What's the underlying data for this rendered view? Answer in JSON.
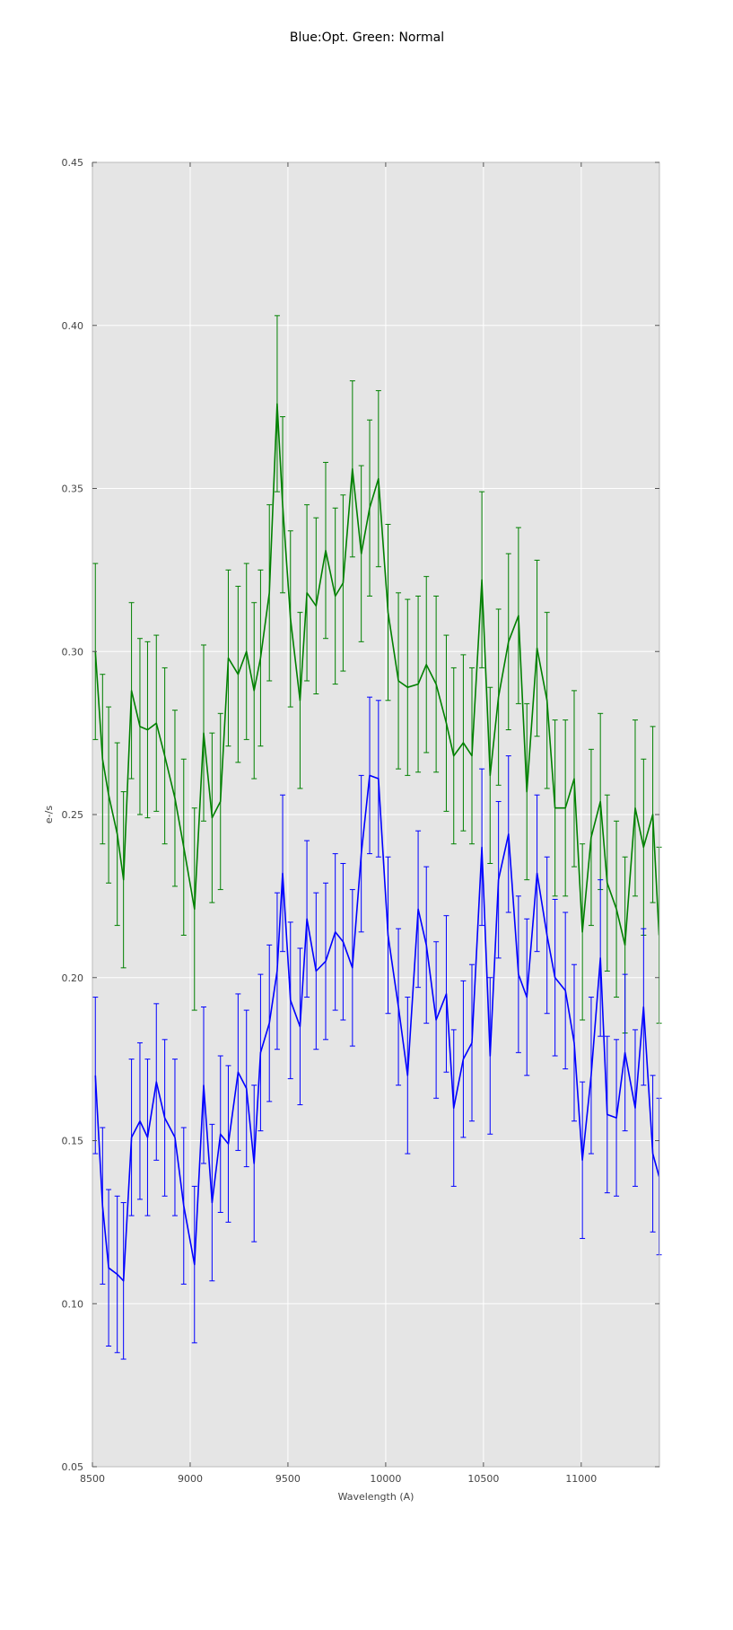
{
  "chart_data": {
    "type": "line",
    "title": "Blue:Opt. Green: Normal",
    "xlabel": "Wavelength (A)",
    "ylabel": "e-/s",
    "xlim": [
      8500,
      11400
    ],
    "ylim": [
      0.05,
      0.45
    ],
    "xticks": [
      8500,
      9000,
      9500,
      10000,
      10500,
      11000
    ],
    "xtick_labels": [
      "8500",
      "9000",
      "9500",
      "10000",
      "10500",
      "11000"
    ],
    "yticks": [
      0.05,
      0.1,
      0.15,
      0.2,
      0.25,
      0.3,
      0.35,
      0.4,
      0.45
    ],
    "ytick_labels": [
      "0.05",
      "0.10",
      "0.15",
      "0.20",
      "0.25",
      "0.30",
      "0.35",
      "0.40",
      "0.45"
    ],
    "grid": true,
    "background": "#e5e5e5",
    "error_bars": true,
    "x": [
      8515,
      8552,
      8583,
      8627,
      8659,
      8700,
      8743,
      8782,
      8827,
      8870,
      8922,
      8967,
      9022,
      9069,
      9112,
      9155,
      9195,
      9245,
      9288,
      9327,
      9360,
      9405,
      9445,
      9473,
      9513,
      9562,
      9597,
      9644,
      9693,
      9742,
      9782,
      9830,
      9875,
      9918,
      9963,
      10012,
      10065,
      10112,
      10166,
      10208,
      10258,
      10310,
      10348,
      10397,
      10441,
      10492,
      10534,
      10577,
      10628,
      10679,
      10722,
      10774,
      10825,
      10866,
      10919,
      10964,
      11006,
      11051,
      11098,
      11133,
      11180,
      11224,
      11276,
      11319,
      11366,
      11398
    ],
    "series": [
      {
        "color": "#008000",
        "values": [
          0.3,
          0.267,
          0.256,
          0.244,
          0.23,
          0.288,
          0.277,
          0.276,
          0.278,
          0.268,
          0.255,
          0.24,
          0.221,
          0.275,
          0.249,
          0.254,
          0.298,
          0.293,
          0.3,
          0.288,
          0.298,
          0.318,
          0.376,
          0.345,
          0.31,
          0.285,
          0.318,
          0.314,
          0.331,
          0.317,
          0.321,
          0.356,
          0.33,
          0.344,
          0.353,
          0.312,
          0.291,
          0.289,
          0.29,
          0.296,
          0.29,
          0.278,
          0.268,
          0.272,
          0.268,
          0.322,
          0.262,
          0.286,
          0.303,
          0.311,
          0.257,
          0.301,
          0.285,
          0.252,
          0.252,
          0.261,
          0.214,
          0.243,
          0.254,
          0.229,
          0.221,
          0.21,
          0.252,
          0.24,
          0.25,
          0.213
        ],
        "err": [
          0.027,
          0.026,
          0.027,
          0.028,
          0.027,
          0.027,
          0.027,
          0.027,
          0.027,
          0.027,
          0.027,
          0.027,
          0.031,
          0.027,
          0.026,
          0.027,
          0.027,
          0.027,
          0.027,
          0.027,
          0.027,
          0.027,
          0.027,
          0.027,
          0.027,
          0.027,
          0.027,
          0.027,
          0.027,
          0.027,
          0.027,
          0.027,
          0.027,
          0.027,
          0.027,
          0.027,
          0.027,
          0.027,
          0.027,
          0.027,
          0.027,
          0.027,
          0.027,
          0.027,
          0.027,
          0.027,
          0.027,
          0.027,
          0.027,
          0.027,
          0.027,
          0.027,
          0.027,
          0.027,
          0.027,
          0.027,
          0.027,
          0.027,
          0.027,
          0.027,
          0.027,
          0.027,
          0.027,
          0.027,
          0.027,
          0.027
        ]
      },
      {
        "color": "#0000ff",
        "values": [
          0.17,
          0.13,
          0.111,
          0.109,
          0.107,
          0.151,
          0.156,
          0.151,
          0.168,
          0.157,
          0.151,
          0.13,
          0.112,
          0.167,
          0.131,
          0.152,
          0.149,
          0.171,
          0.166,
          0.143,
          0.177,
          0.186,
          0.202,
          0.232,
          0.193,
          0.185,
          0.218,
          0.202,
          0.205,
          0.214,
          0.211,
          0.203,
          0.238,
          0.262,
          0.261,
          0.213,
          0.191,
          0.17,
          0.221,
          0.21,
          0.187,
          0.195,
          0.16,
          0.175,
          0.18,
          0.24,
          0.176,
          0.23,
          0.244,
          0.201,
          0.194,
          0.232,
          0.213,
          0.2,
          0.196,
          0.18,
          0.144,
          0.17,
          0.206,
          0.158,
          0.157,
          0.177,
          0.16,
          0.191,
          0.146,
          0.139
        ],
        "err": [
          0.024,
          0.024,
          0.024,
          0.024,
          0.024,
          0.024,
          0.024,
          0.024,
          0.024,
          0.024,
          0.024,
          0.024,
          0.024,
          0.024,
          0.024,
          0.024,
          0.024,
          0.024,
          0.024,
          0.024,
          0.024,
          0.024,
          0.024,
          0.024,
          0.024,
          0.024,
          0.024,
          0.024,
          0.024,
          0.024,
          0.024,
          0.024,
          0.024,
          0.024,
          0.024,
          0.024,
          0.024,
          0.024,
          0.024,
          0.024,
          0.024,
          0.024,
          0.024,
          0.024,
          0.024,
          0.024,
          0.024,
          0.024,
          0.024,
          0.024,
          0.024,
          0.024,
          0.024,
          0.024,
          0.024,
          0.024,
          0.024,
          0.024,
          0.024,
          0.024,
          0.024,
          0.024,
          0.024,
          0.024,
          0.024,
          0.024
        ]
      }
    ]
  }
}
